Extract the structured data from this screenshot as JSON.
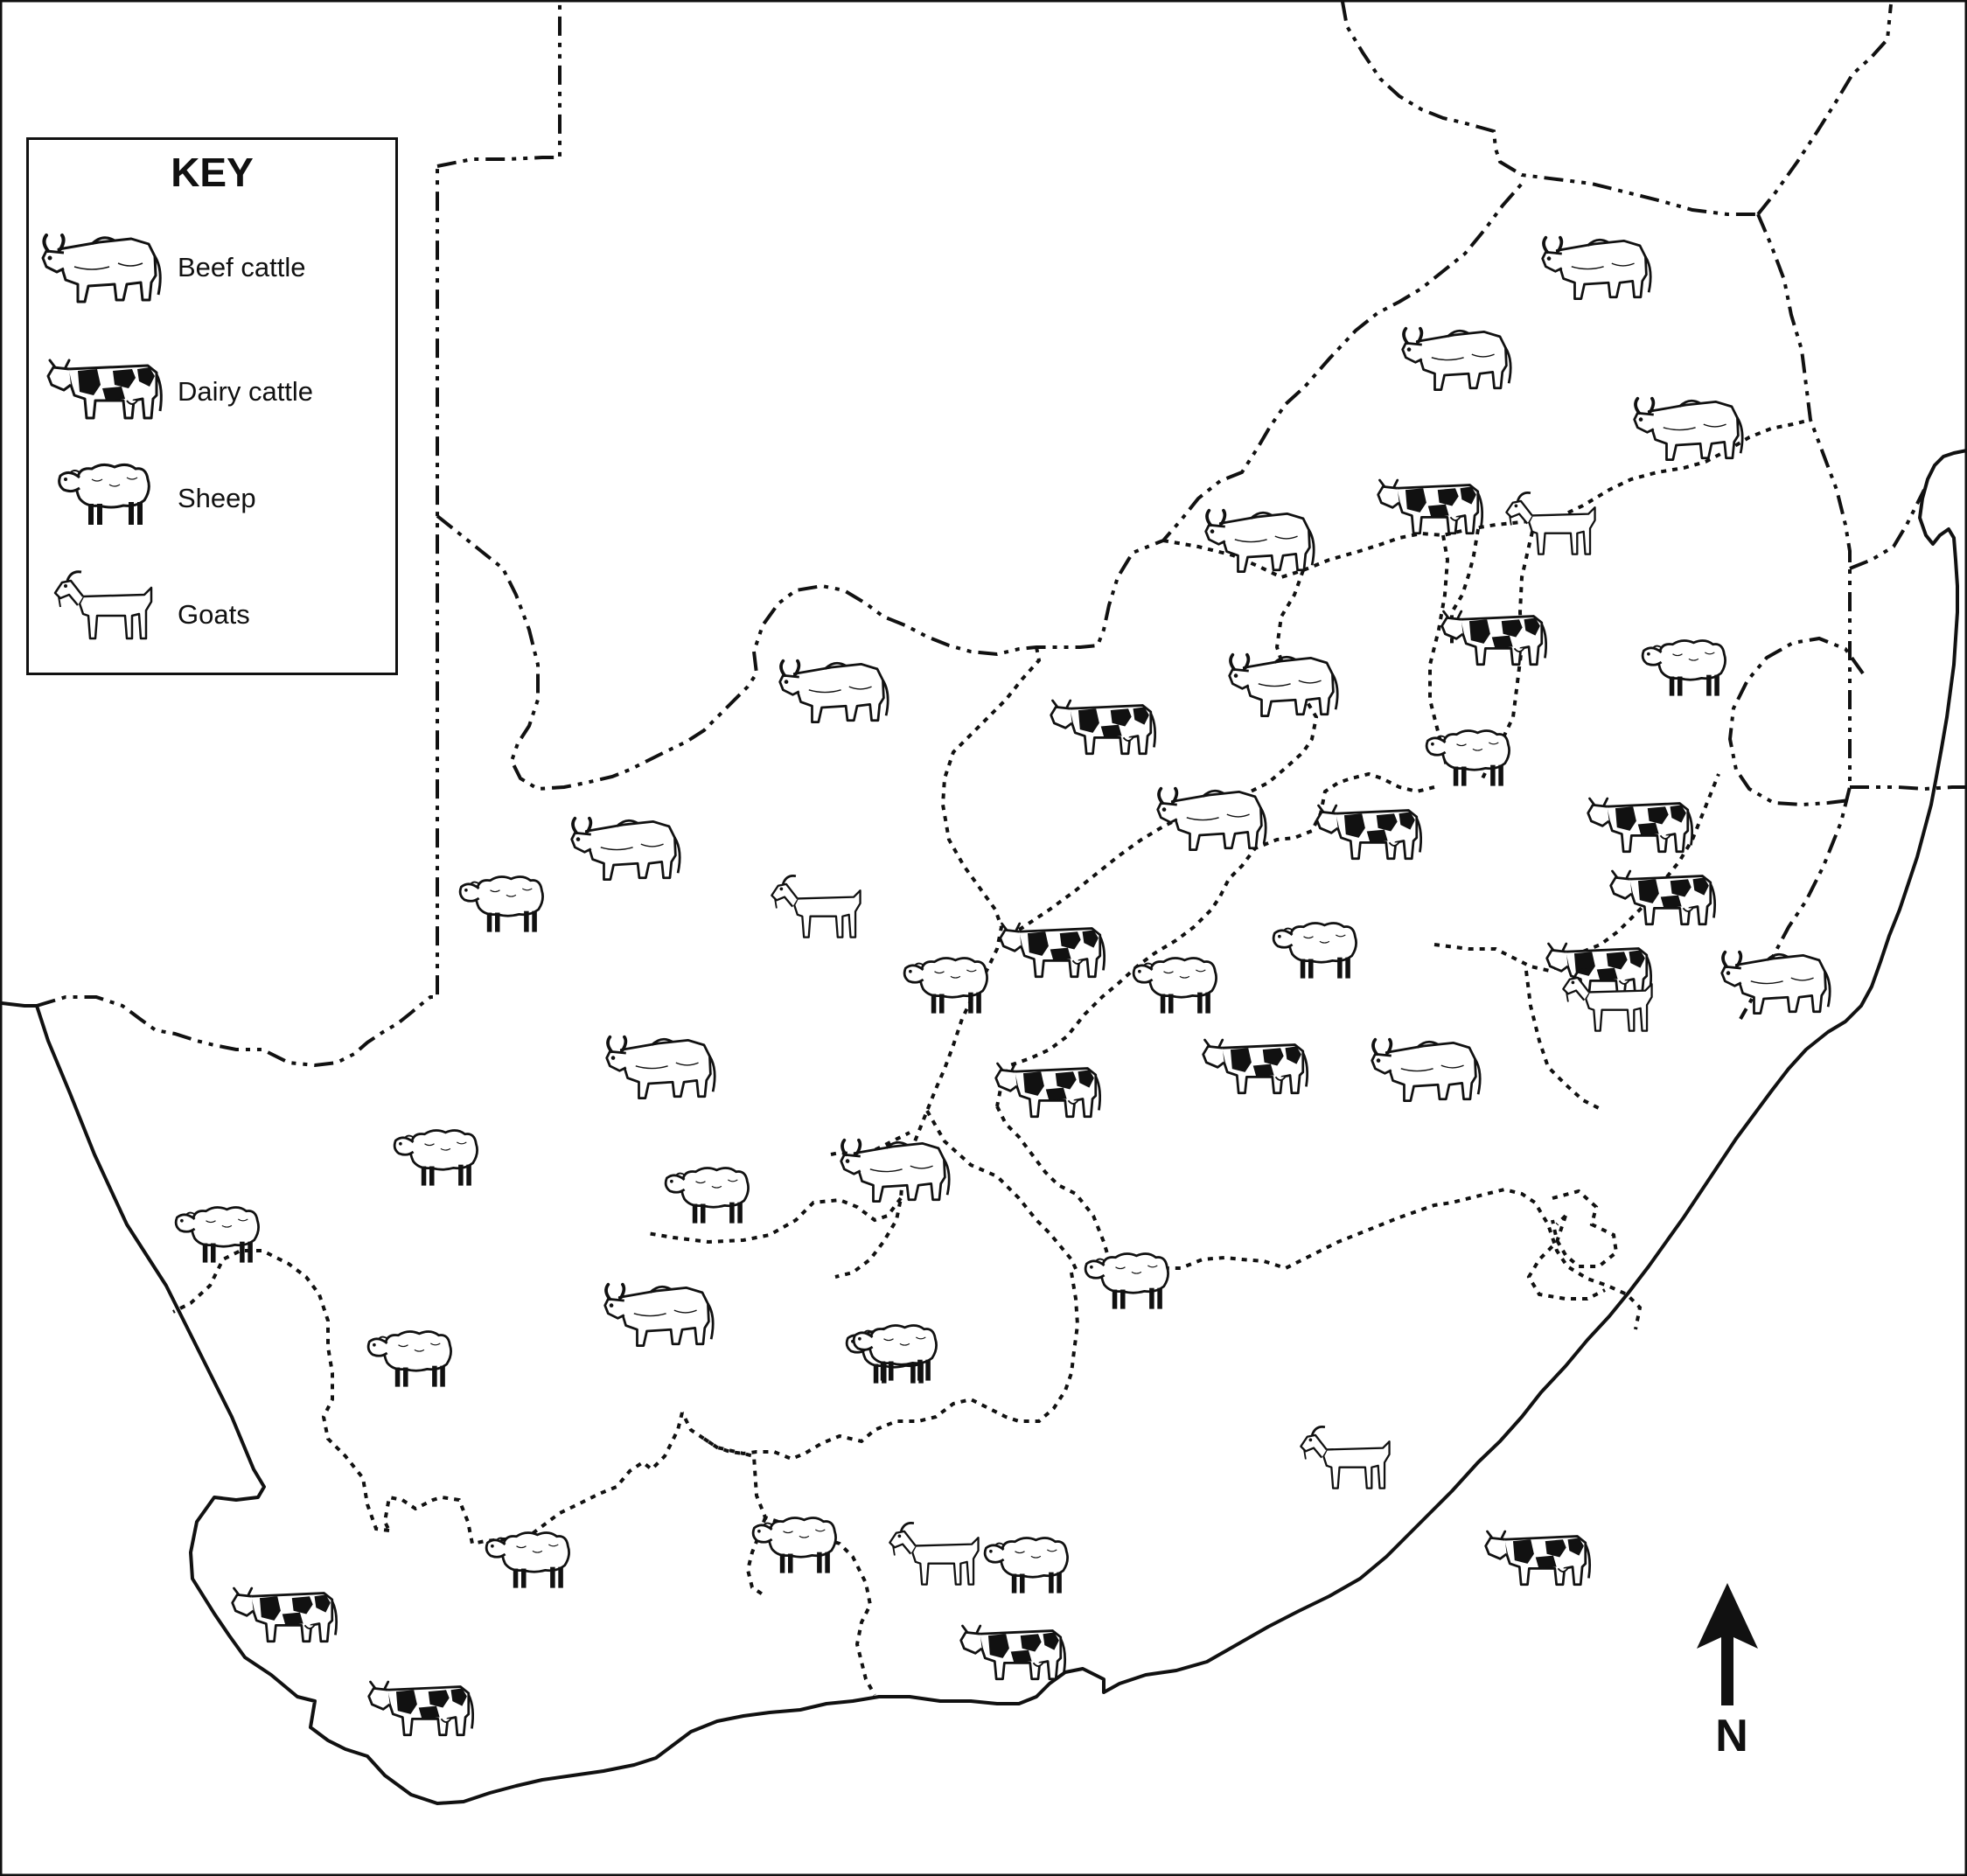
{
  "key": {
    "title": "KEY",
    "items": [
      {
        "type": "beef",
        "label": "Beef cattle"
      },
      {
        "type": "dairy",
        "label": "Dairy cattle"
      },
      {
        "type": "sheep",
        "label": "Sheep"
      },
      {
        "type": "goat",
        "label": "Goats"
      }
    ]
  },
  "north_arrow": {
    "label": "N"
  },
  "colors": {
    "ink": "#111111",
    "background": "#ffffff"
  },
  "symbols": [
    {
      "type": "beef"
    },
    {
      "type": "beef"
    },
    {
      "type": "beef"
    },
    {
      "type": "dairy"
    },
    {
      "type": "goat"
    },
    {
      "type": "beef"
    },
    {
      "type": "dairy"
    },
    {
      "type": "sheep"
    },
    {
      "type": "beef"
    },
    {
      "type": "dairy"
    },
    {
      "type": "beef"
    },
    {
      "type": "beef"
    },
    {
      "type": "dairy"
    },
    {
      "type": "sheep"
    },
    {
      "type": "dairy"
    },
    {
      "type": "beef"
    },
    {
      "type": "sheep"
    },
    {
      "type": "goat"
    },
    {
      "type": "dairy"
    },
    {
      "type": "sheep"
    },
    {
      "type": "sheep"
    },
    {
      "type": "sheep"
    },
    {
      "type": "dairy"
    },
    {
      "type": "beef"
    },
    {
      "type": "dairy"
    },
    {
      "type": "goat"
    },
    {
      "type": "beef"
    },
    {
      "type": "dairy"
    },
    {
      "type": "beef"
    },
    {
      "type": "dairy"
    },
    {
      "type": "sheep"
    },
    {
      "type": "sheep"
    },
    {
      "type": "sheep"
    },
    {
      "type": "sheep"
    },
    {
      "type": "beef"
    },
    {
      "type": "sheep"
    },
    {
      "type": "beef"
    },
    {
      "type": "sheep"
    },
    {
      "type": "sheep"
    },
    {
      "type": "sheep"
    },
    {
      "type": "sheep"
    },
    {
      "type": "goat"
    },
    {
      "type": "dairy"
    },
    {
      "type": "dairy"
    },
    {
      "type": "dairy"
    },
    {
      "type": "dairy"
    },
    {
      "type": "goat"
    },
    {
      "type": "sheep"
    }
  ]
}
